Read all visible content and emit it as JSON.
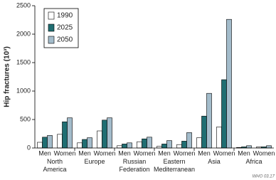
{
  "chart_data": {
    "type": "bar",
    "y_label": "Hip fractures (10³)",
    "categories": [
      "Men",
      "Women",
      "Men",
      "Women",
      "Men",
      "Women",
      "Men",
      "Women",
      "Men",
      "Women",
      "Men",
      "Women"
    ],
    "groups": [
      "North America",
      "Europe",
      "Russian Federation",
      "Eastern Mediterranean",
      "Asia",
      "Africa"
    ],
    "series": [
      {
        "name": "1990",
        "color": "#ffffff",
        "values": [
          100,
          240,
          90,
          300,
          40,
          110,
          30,
          60,
          180,
          370,
          10,
          20
        ]
      },
      {
        "name": "2025",
        "color": "#1f6e72",
        "values": [
          190,
          460,
          150,
          490,
          70,
          160,
          70,
          120,
          560,
          1200,
          20,
          20
        ]
      },
      {
        "name": "2050",
        "color": "#a3bccb",
        "values": [
          220,
          530,
          180,
          530,
          90,
          190,
          130,
          270,
          960,
          2260,
          40,
          40
        ]
      }
    ],
    "ylim": [
      0,
      2500
    ],
    "yticks": [
      0,
      500,
      1000,
      1500,
      2000,
      2500
    ],
    "legend": "upper-left",
    "source": "WHO 03.17"
  }
}
